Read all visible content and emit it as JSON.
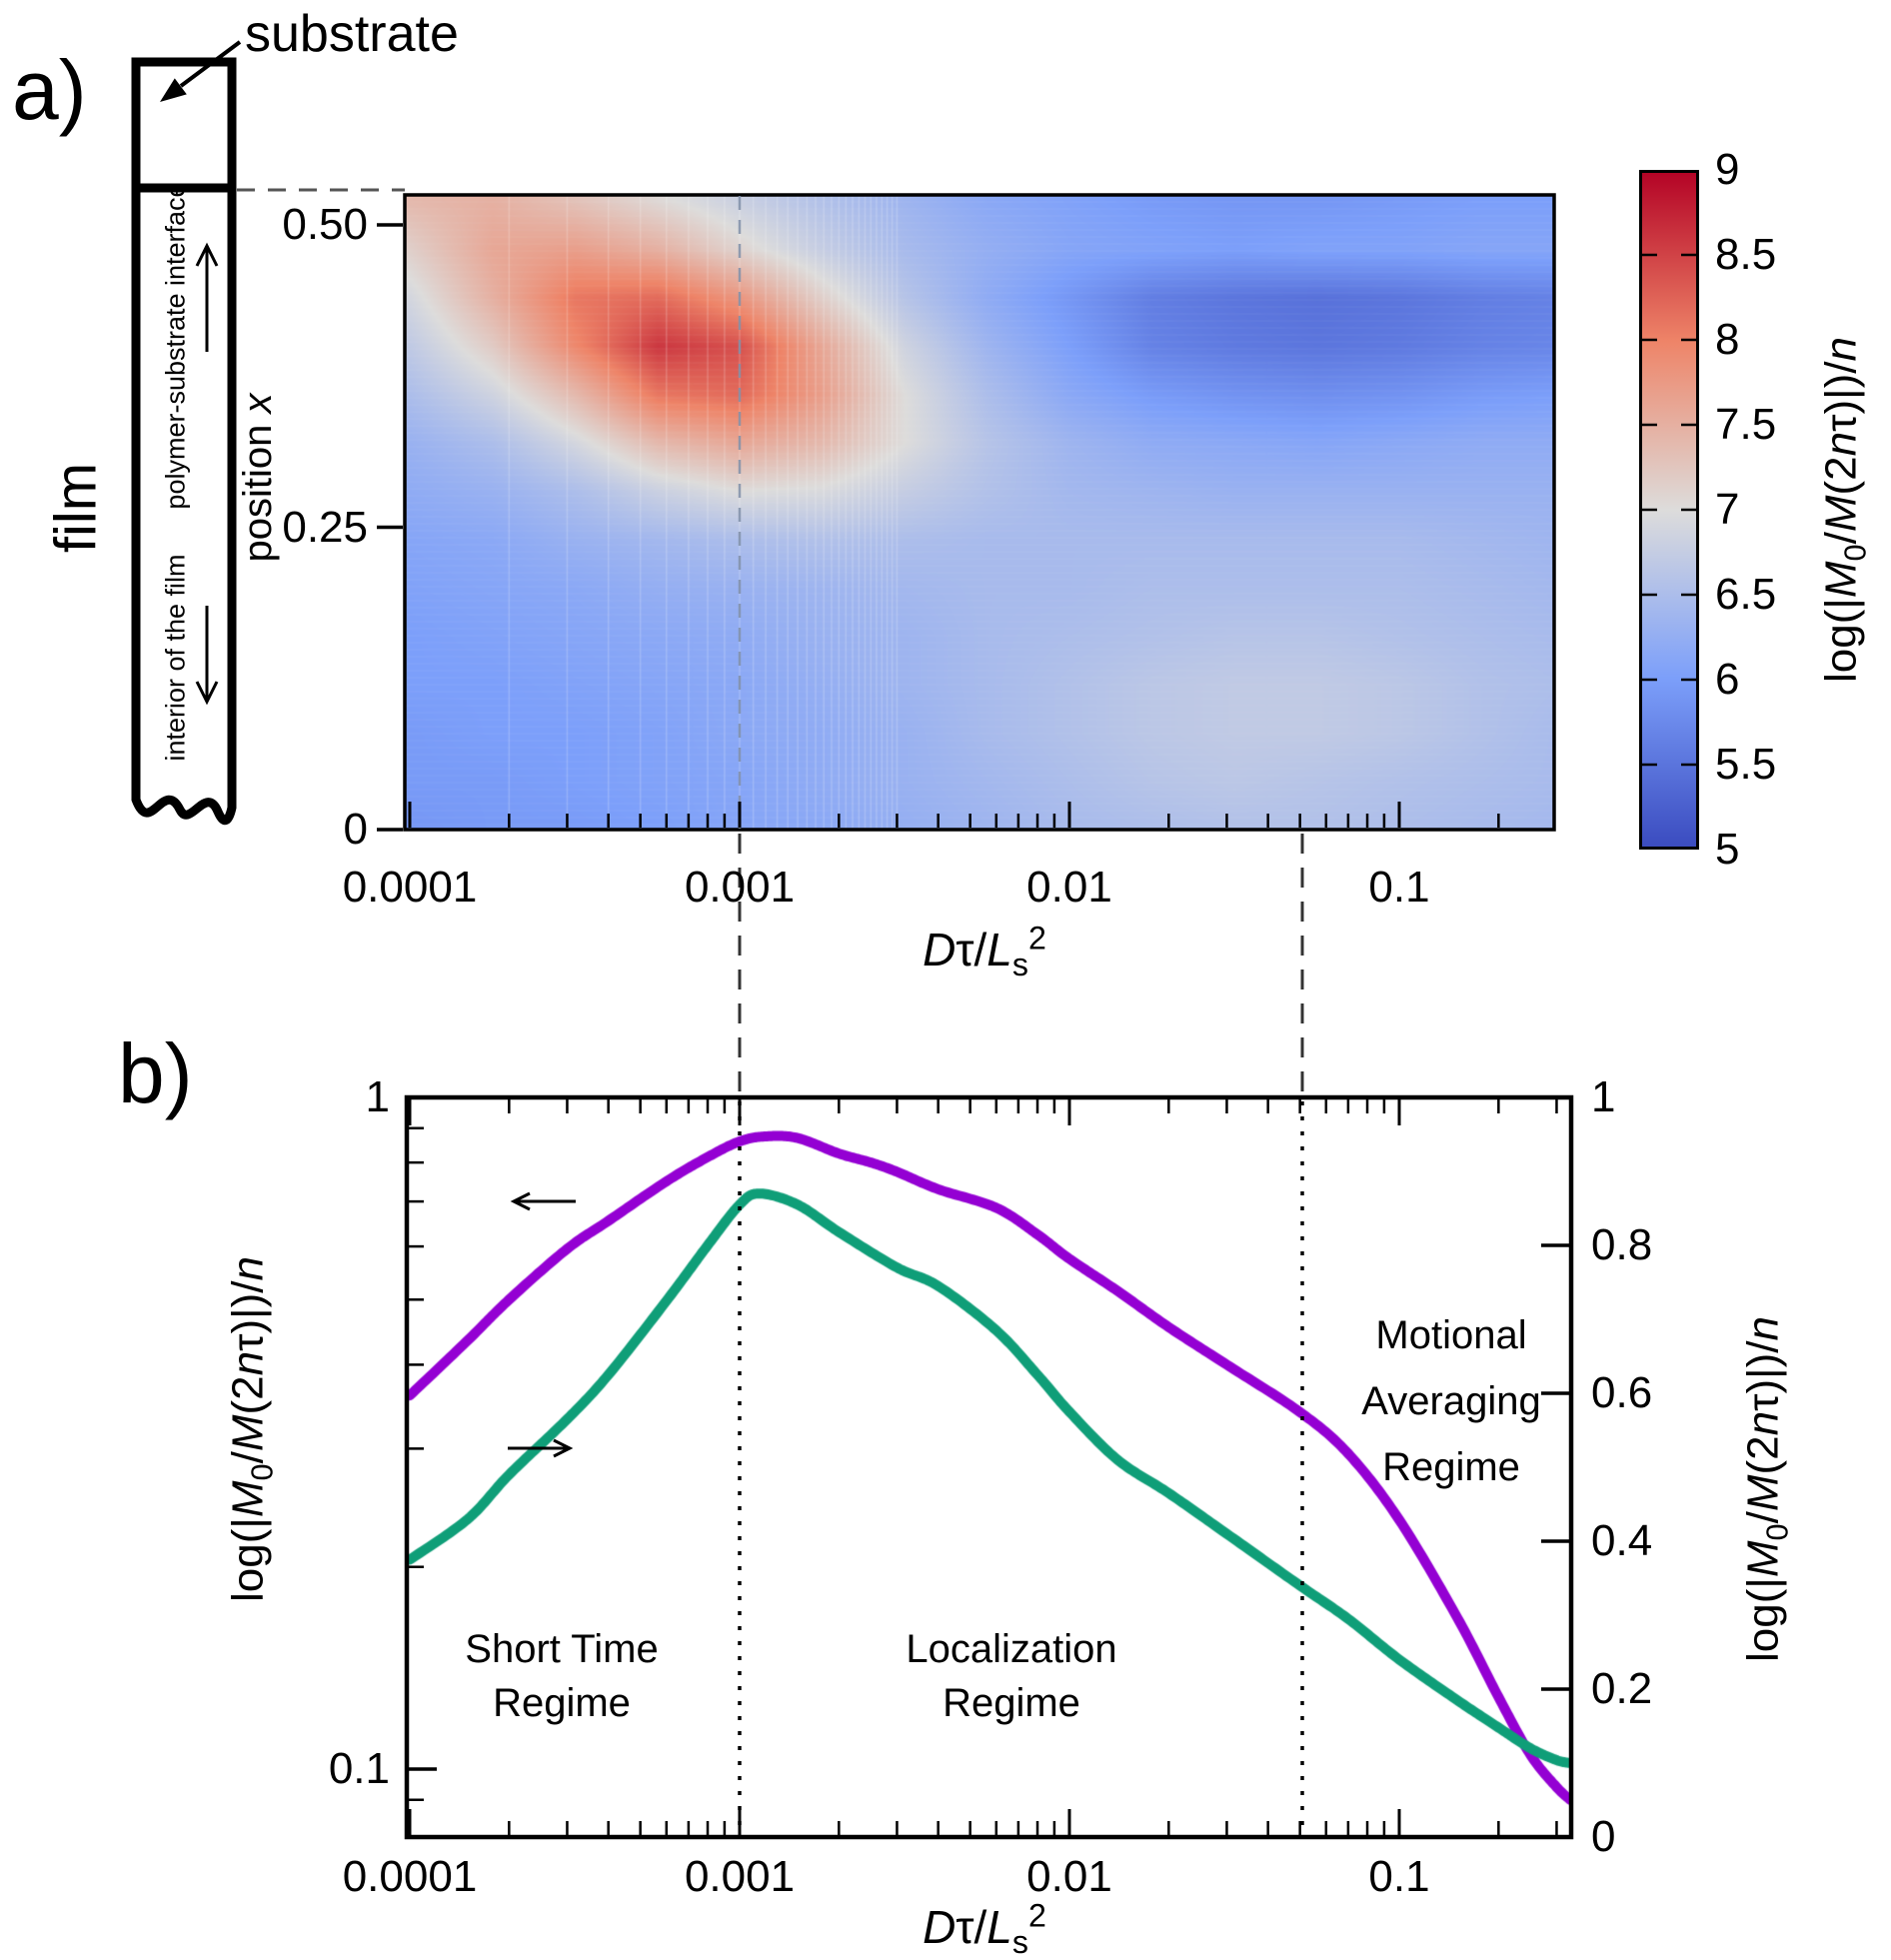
{
  "figure": {
    "panel_a_label": "a)",
    "panel_b_label": "b)",
    "substrate_label": "substrate",
    "film_label": "film",
    "interface_label": "polymer-substrate interface",
    "interior_label": "interior of the film",
    "position_axis_label": "position *x*",
    "x_axis_label": "*D*τ/*L*_s_^2^",
    "magnetization_label": "log(|*M*_0_/*M*(2*n*τ)|)/*n*",
    "regions": {
      "short_time": [
        "Short Time",
        "Regime"
      ],
      "localization": [
        "Localization",
        "Regime"
      ],
      "motional": [
        "Motional",
        "Averaging",
        "Regime"
      ]
    }
  },
  "colors": {
    "purple_series": "#9400d3",
    "green_series": "#0f9e78",
    "axis": "#000000",
    "connector_dash": "#333333",
    "heatmap_dash": "#8090a8",
    "striation": "rgba(255,255,255,0.20)"
  },
  "chart_data": [
    {
      "type": "heatmap",
      "panel": "a",
      "xlabel": "Dτ/Ls^2",
      "ylabel": "position x",
      "zlabel": "log(|M0/M(2nτ)|)/n",
      "x_scale": "log",
      "xlim": [
        0.0001,
        0.3
      ],
      "ylim": [
        0,
        0.525
      ],
      "zlim": [
        5,
        9
      ],
      "x_ticks": {
        "values": [
          0.0001,
          0.001,
          0.01,
          0.1
        ],
        "labels": [
          "0.0001",
          "0.001",
          "0.01",
          "0.1"
        ]
      },
      "y_ticks": {
        "values": [
          0.5,
          0.25,
          0
        ],
        "labels": [
          "0.50",
          "0.25",
          "0"
        ]
      },
      "colorbar_ticks": {
        "values": [
          9,
          8.5,
          8,
          7.5,
          7,
          6.5,
          6,
          5.5,
          5
        ],
        "labels": [
          "9",
          "8.5",
          "8",
          "7.5",
          "7",
          "6.5",
          "6",
          "5.5",
          "5"
        ]
      },
      "colormap_stops": [
        [
          5,
          "#3b4cc0"
        ],
        [
          6,
          "#7c9ffa"
        ],
        [
          7,
          "#dddcdb"
        ],
        [
          8,
          "#ee8468"
        ],
        [
          9,
          "#b40426"
        ]
      ],
      "dashed_guide_x": 0.001,
      "grid_log10x": [
        -4.0,
        -3.75,
        -3.5,
        -3.25,
        -3.0,
        -2.75,
        -2.5,
        -2.25,
        -2.0,
        -1.75,
        -1.5,
        -1.25,
        -1.0,
        -0.75,
        -0.5
      ],
      "grid_position": [
        0.52,
        0.48,
        0.44,
        0.4,
        0.36,
        0.32,
        0.28,
        0.24,
        0.2,
        0.16,
        0.12,
        0.08,
        0.04,
        0.0
      ],
      "values": [
        [
          7.4,
          7.5,
          7.3,
          7.05,
          6.8,
          6.55,
          6.35,
          6.15,
          6.05,
          5.95,
          5.9,
          5.9,
          5.95,
          6.0,
          6.0
        ],
        [
          7.15,
          7.6,
          7.7,
          7.5,
          7.1,
          6.75,
          6.45,
          6.25,
          6.1,
          6.05,
          6.0,
          6.05,
          6.05,
          6.1,
          6.1
        ],
        [
          6.9,
          7.5,
          8.1,
          8.2,
          7.8,
          7.15,
          6.6,
          6.2,
          5.9,
          5.6,
          5.5,
          5.45,
          5.5,
          5.6,
          5.65
        ],
        [
          6.7,
          7.2,
          7.95,
          8.6,
          8.4,
          7.6,
          6.85,
          6.35,
          6.0,
          5.65,
          5.55,
          5.5,
          5.55,
          5.65,
          5.7
        ],
        [
          6.5,
          6.85,
          7.4,
          8.1,
          8.2,
          7.7,
          7.0,
          6.5,
          6.15,
          5.95,
          5.85,
          5.8,
          5.85,
          5.95,
          6.0
        ],
        [
          6.3,
          6.5,
          6.9,
          7.4,
          7.6,
          7.4,
          7.0,
          6.6,
          6.35,
          6.2,
          6.15,
          6.1,
          6.15,
          6.2,
          6.2
        ],
        [
          6.2,
          6.3,
          6.5,
          6.8,
          7.0,
          6.95,
          6.75,
          6.55,
          6.4,
          6.35,
          6.3,
          6.3,
          6.3,
          6.3,
          6.3
        ],
        [
          6.1,
          6.15,
          6.3,
          6.4,
          6.5,
          6.55,
          6.5,
          6.45,
          6.45,
          6.45,
          6.45,
          6.45,
          6.45,
          6.4,
          6.35
        ],
        [
          6.05,
          6.1,
          6.15,
          6.25,
          6.3,
          6.35,
          6.4,
          6.45,
          6.45,
          6.5,
          6.5,
          6.5,
          6.5,
          6.45,
          6.4
        ],
        [
          6.0,
          6.05,
          6.1,
          6.15,
          6.2,
          6.3,
          6.35,
          6.45,
          6.5,
          6.55,
          6.6,
          6.6,
          6.55,
          6.5,
          6.45
        ],
        [
          6.0,
          6.0,
          6.05,
          6.1,
          6.15,
          6.25,
          6.35,
          6.45,
          6.55,
          6.65,
          6.7,
          6.7,
          6.65,
          6.55,
          6.5
        ],
        [
          5.95,
          6.0,
          6.0,
          6.05,
          6.15,
          6.2,
          6.3,
          6.45,
          6.55,
          6.65,
          6.7,
          6.7,
          6.65,
          6.55,
          6.45
        ],
        [
          5.95,
          5.95,
          6.0,
          6.05,
          6.1,
          6.2,
          6.3,
          6.4,
          6.5,
          6.6,
          6.65,
          6.6,
          6.55,
          6.5,
          6.45
        ],
        [
          5.9,
          5.95,
          5.95,
          6.0,
          6.1,
          6.15,
          6.25,
          6.35,
          6.45,
          6.5,
          6.55,
          6.55,
          6.5,
          6.45,
          6.4
        ]
      ]
    },
    {
      "type": "line",
      "panel": "b",
      "xlabel": "Dτ/Ls^2",
      "x_scale": "log",
      "xlim": [
        0.0001,
        0.33
      ],
      "left_axis": {
        "scale": "log",
        "range": [
          0.079,
          1
        ],
        "label": "log(|M0/M(2nτ)|)/n",
        "major_ticks": {
          "values": [
            1,
            0.1
          ],
          "labels": [
            "1",
            "0.1"
          ]
        },
        "minor_ticks": [
          0.9,
          0.8,
          0.7,
          0.6,
          0.5,
          0.4,
          0.3,
          0.2,
          0.09,
          0.08
        ]
      },
      "right_axis": {
        "scale": "linear",
        "range": [
          0,
          1
        ],
        "label": "log(|M0/M(2nτ)|)/n",
        "major_ticks": {
          "values": [
            1,
            0.8,
            0.6,
            0.4,
            0.2,
            0
          ],
          "labels": [
            "1",
            "0.8",
            "0.6",
            "0.4",
            "0.2",
            "0"
          ]
        }
      },
      "x_ticks": {
        "values": [
          0.0001,
          0.001,
          0.01,
          0.1
        ],
        "labels": [
          "0.0001",
          "0.001",
          "0.01",
          "0.1"
        ]
      },
      "dotted_guides_x": [
        0.001,
        0.05
      ],
      "series": [
        {
          "name": "purple-curve",
          "axis": "left",
          "color": "#9400d3",
          "points": [
            [
              0.0001,
              0.36
            ],
            [
              0.00015,
              0.435
            ],
            [
              0.0002,
              0.5
            ],
            [
              0.0003,
              0.595
            ],
            [
              0.0004,
              0.655
            ],
            [
              0.0006,
              0.75
            ],
            [
              0.0008,
              0.815
            ],
            [
              0.001,
              0.86
            ],
            [
              0.0012,
              0.875
            ],
            [
              0.0015,
              0.87
            ],
            [
              0.002,
              0.825
            ],
            [
              0.0025,
              0.8
            ],
            [
              0.003,
              0.775
            ],
            [
              0.004,
              0.73
            ],
            [
              0.006,
              0.685
            ],
            [
              0.008,
              0.625
            ],
            [
              0.01,
              0.575
            ],
            [
              0.014,
              0.515
            ],
            [
              0.02,
              0.455
            ],
            [
              0.03,
              0.4
            ],
            [
              0.05,
              0.34
            ],
            [
              0.07,
              0.295
            ],
            [
              0.1,
              0.235
            ],
            [
              0.15,
              0.168
            ],
            [
              0.2,
              0.128
            ],
            [
              0.25,
              0.105
            ],
            [
              0.3,
              0.094
            ],
            [
              0.33,
              0.09
            ]
          ]
        },
        {
          "name": "green-curve",
          "axis": "right",
          "color": "#0f9e78",
          "points": [
            [
              0.0001,
              0.375
            ],
            [
              0.00015,
              0.43
            ],
            [
              0.0002,
              0.49
            ],
            [
              0.0003,
              0.565
            ],
            [
              0.0004,
              0.625
            ],
            [
              0.0006,
              0.725
            ],
            [
              0.0008,
              0.8
            ],
            [
              0.001,
              0.855
            ],
            [
              0.00115,
              0.87
            ],
            [
              0.0015,
              0.855
            ],
            [
              0.002,
              0.818
            ],
            [
              0.003,
              0.77
            ],
            [
              0.004,
              0.745
            ],
            [
              0.006,
              0.685
            ],
            [
              0.008,
              0.625
            ],
            [
              0.01,
              0.575
            ],
            [
              0.014,
              0.51
            ],
            [
              0.02,
              0.465
            ],
            [
              0.03,
              0.41
            ],
            [
              0.05,
              0.34
            ],
            [
              0.07,
              0.295
            ],
            [
              0.1,
              0.24
            ],
            [
              0.15,
              0.185
            ],
            [
              0.2,
              0.148
            ],
            [
              0.25,
              0.12
            ],
            [
              0.3,
              0.104
            ],
            [
              0.33,
              0.1
            ]
          ]
        }
      ]
    }
  ]
}
